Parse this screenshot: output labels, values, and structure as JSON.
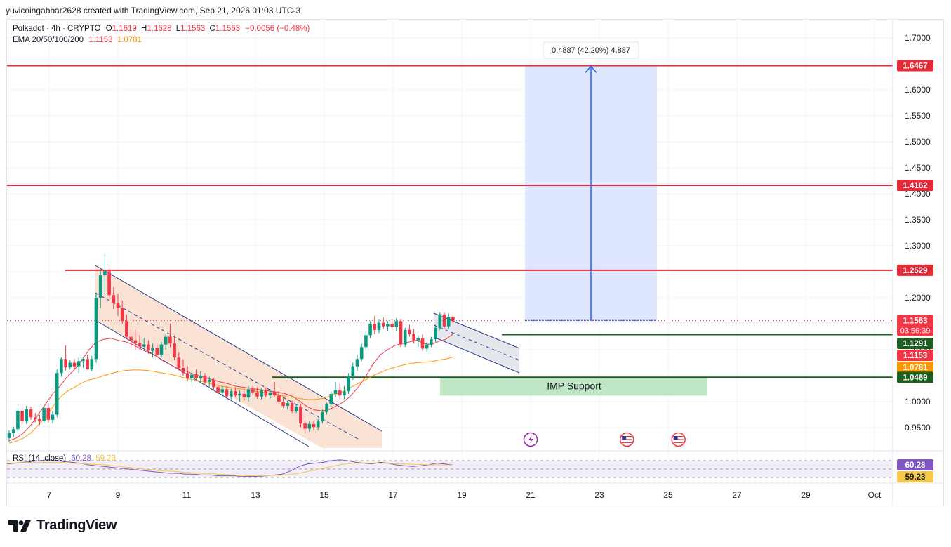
{
  "header": {
    "caption": "yuvicoingabbar2628 created with TradingView.com, Sep 21, 2026 01:03 UTC-3"
  },
  "legend": {
    "symbol": "Polkadot · 4h · CRYPTO",
    "o_label": "O",
    "o": "1.1619",
    "h_label": "H",
    "h": "1.1628",
    "l_label": "L",
    "l": "1.1563",
    "c_label": "C",
    "c": "1.1563",
    "change": "−0.0056 (−0.48%)",
    "ema_label": "EMA 20/50/100/200",
    "ema1": "1.1153",
    "ema2": "1.0781"
  },
  "rsi": {
    "label": "RSI (14, close)",
    "v1": "60.28",
    "v2": "59.23",
    "axis_v1": "60.28",
    "axis_v2": "59.23"
  },
  "chart_data": {
    "type": "candlestick",
    "instrument": "Polkadot · 4h · CRYPTO",
    "ylim": [
      0.92,
      1.72
    ],
    "y_ticks": [
      "0.9500",
      "1.0000",
      "1.0500",
      "1.1000",
      "1.1500",
      "1.2000",
      "1.2500",
      "1.3000",
      "1.3500",
      "1.4000",
      "1.4500",
      "1.5000",
      "1.5500",
      "1.6000",
      "1.6500",
      "1.7000"
    ],
    "x_ticks": [
      "7",
      "9",
      "11",
      "13",
      "15",
      "17",
      "19",
      "21",
      "23",
      "25",
      "27",
      "29",
      "Oct"
    ],
    "price_labels": {
      "last": "1.1563",
      "countdown": "03:56:39",
      "r1": "1.6467",
      "r2": "1.4162",
      "r3": "1.2529",
      "s1": "1.1291",
      "ema20": "1.1153",
      "ema50": "1.0781",
      "s2": "1.0469"
    },
    "horizontal_levels": [
      1.6467,
      1.4162,
      1.2529,
      1.1291,
      1.0469
    ],
    "measure_label": "0.4887 (42.20%) 4,887",
    "support_zone_label": "IMP Support",
    "colors": {
      "up": "#089981",
      "down": "#f23645",
      "ema20": "#f23645",
      "ema50": "#ff9800",
      "resistance": "#e52937",
      "support": "#1b5e20",
      "target_box": "#dbe4ff",
      "measure_arrow": "#2962ff"
    },
    "candles": [
      {
        "o": 0.93,
        "h": 0.945,
        "l": 0.922,
        "c": 0.94
      },
      {
        "o": 0.94,
        "h": 0.952,
        "l": 0.932,
        "c": 0.947
      },
      {
        "o": 0.947,
        "h": 0.988,
        "l": 0.94,
        "c": 0.982
      },
      {
        "o": 0.982,
        "h": 0.99,
        "l": 0.955,
        "c": 0.962
      },
      {
        "o": 0.962,
        "h": 0.992,
        "l": 0.957,
        "c": 0.985
      },
      {
        "o": 0.985,
        "h": 0.99,
        "l": 0.965,
        "c": 0.97
      },
      {
        "o": 0.97,
        "h": 0.978,
        "l": 0.96,
        "c": 0.967
      },
      {
        "o": 0.967,
        "h": 0.975,
        "l": 0.955,
        "c": 0.962
      },
      {
        "o": 0.962,
        "h": 0.992,
        "l": 0.958,
        "c": 0.988
      },
      {
        "o": 0.988,
        "h": 0.995,
        "l": 0.96,
        "c": 0.965
      },
      {
        "o": 0.965,
        "h": 0.982,
        "l": 0.958,
        "c": 0.975
      },
      {
        "o": 0.975,
        "h": 1.062,
        "l": 0.97,
        "c": 1.055
      },
      {
        "o": 1.055,
        "h": 1.085,
        "l": 1.048,
        "c": 1.082
      },
      {
        "o": 1.082,
        "h": 1.108,
        "l": 1.06,
        "c": 1.066
      },
      {
        "o": 1.066,
        "h": 1.08,
        "l": 1.062,
        "c": 1.075
      },
      {
        "o": 1.075,
        "h": 1.082,
        "l": 1.062,
        "c": 1.068
      },
      {
        "o": 1.068,
        "h": 1.085,
        "l": 1.055,
        "c": 1.078
      },
      {
        "o": 1.078,
        "h": 1.086,
        "l": 1.065,
        "c": 1.082
      },
      {
        "o": 1.082,
        "h": 1.09,
        "l": 1.068,
        "c": 1.062
      },
      {
        "o": 1.062,
        "h": 1.088,
        "l": 1.058,
        "c": 1.082
      },
      {
        "o": 1.082,
        "h": 1.208,
        "l": 1.075,
        "c": 1.2
      },
      {
        "o": 1.2,
        "h": 1.255,
        "l": 1.18,
        "c": 1.243
      },
      {
        "o": 1.243,
        "h": 1.283,
        "l": 1.205,
        "c": 1.251
      },
      {
        "o": 1.251,
        "h": 1.262,
        "l": 1.195,
        "c": 1.205
      },
      {
        "o": 1.205,
        "h": 1.22,
        "l": 1.178,
        "c": 1.19
      },
      {
        "o": 1.19,
        "h": 1.208,
        "l": 1.165,
        "c": 1.18
      },
      {
        "o": 1.18,
        "h": 1.195,
        "l": 1.15,
        "c": 1.155
      },
      {
        "o": 1.155,
        "h": 1.168,
        "l": 1.12,
        "c": 1.125
      },
      {
        "o": 1.125,
        "h": 1.14,
        "l": 1.105,
        "c": 1.118
      },
      {
        "o": 1.118,
        "h": 1.138,
        "l": 1.1,
        "c": 1.112
      },
      {
        "o": 1.112,
        "h": 1.128,
        "l": 1.1,
        "c": 1.106
      },
      {
        "o": 1.106,
        "h": 1.122,
        "l": 1.098,
        "c": 1.11
      },
      {
        "o": 1.11,
        "h": 1.118,
        "l": 1.092,
        "c": 1.098
      },
      {
        "o": 1.098,
        "h": 1.112,
        "l": 1.085,
        "c": 1.103
      },
      {
        "o": 1.103,
        "h": 1.11,
        "l": 1.085,
        "c": 1.09
      },
      {
        "o": 1.09,
        "h": 1.115,
        "l": 1.085,
        "c": 1.11
      },
      {
        "o": 1.11,
        "h": 1.13,
        "l": 1.1,
        "c": 1.125
      },
      {
        "o": 1.125,
        "h": 1.15,
        "l": 1.105,
        "c": 1.112
      },
      {
        "o": 1.112,
        "h": 1.128,
        "l": 1.08,
        "c": 1.085
      },
      {
        "o": 1.085,
        "h": 1.095,
        "l": 1.06,
        "c": 1.065
      },
      {
        "o": 1.065,
        "h": 1.082,
        "l": 1.05,
        "c": 1.055
      },
      {
        "o": 1.055,
        "h": 1.068,
        "l": 1.04,
        "c": 1.045
      },
      {
        "o": 1.045,
        "h": 1.06,
        "l": 1.035,
        "c": 1.052
      },
      {
        "o": 1.052,
        "h": 1.062,
        "l": 1.042,
        "c": 1.045
      },
      {
        "o": 1.045,
        "h": 1.058,
        "l": 1.035,
        "c": 1.05
      },
      {
        "o": 1.05,
        "h": 1.055,
        "l": 1.032,
        "c": 1.038
      },
      {
        "o": 1.038,
        "h": 1.048,
        "l": 1.028,
        "c": 1.042
      },
      {
        "o": 1.042,
        "h": 1.045,
        "l": 1.022,
        "c": 1.028
      },
      {
        "o": 1.028,
        "h": 1.036,
        "l": 1.015,
        "c": 1.018
      },
      {
        "o": 1.018,
        "h": 1.03,
        "l": 1.01,
        "c": 1.024
      },
      {
        "o": 1.024,
        "h": 1.03,
        "l": 1.005,
        "c": 1.01
      },
      {
        "o": 1.01,
        "h": 1.025,
        "l": 1.003,
        "c": 1.02
      },
      {
        "o": 1.02,
        "h": 1.028,
        "l": 1.008,
        "c": 1.012
      },
      {
        "o": 1.012,
        "h": 1.022,
        "l": 1.0,
        "c": 1.015
      },
      {
        "o": 1.015,
        "h": 1.026,
        "l": 1.002,
        "c": 1.008
      },
      {
        "o": 1.008,
        "h": 1.03,
        "l": 1.0,
        "c": 1.024
      },
      {
        "o": 1.024,
        "h": 1.03,
        "l": 1.012,
        "c": 1.018
      },
      {
        "o": 1.018,
        "h": 1.028,
        "l": 1.006,
        "c": 1.01
      },
      {
        "o": 1.01,
        "h": 1.026,
        "l": 1.004,
        "c": 1.022
      },
      {
        "o": 1.022,
        "h": 1.028,
        "l": 1.008,
        "c": 1.012
      },
      {
        "o": 1.012,
        "h": 1.024,
        "l": 1.006,
        "c": 1.018
      },
      {
        "o": 1.018,
        "h": 1.038,
        "l": 1.01,
        "c": 1.012
      },
      {
        "o": 1.012,
        "h": 1.02,
        "l": 0.995,
        "c": 1.0
      },
      {
        "o": 1.0,
        "h": 1.008,
        "l": 0.988,
        "c": 0.992
      },
      {
        "o": 0.992,
        "h": 1.002,
        "l": 0.985,
        "c": 0.997
      },
      {
        "o": 0.997,
        "h": 1.002,
        "l": 0.978,
        "c": 0.982
      },
      {
        "o": 0.982,
        "h": 0.994,
        "l": 0.978,
        "c": 0.99
      },
      {
        "o": 0.99,
        "h": 0.995,
        "l": 0.95,
        "c": 0.958
      },
      {
        "o": 0.958,
        "h": 0.965,
        "l": 0.94,
        "c": 0.948
      },
      {
        "o": 0.948,
        "h": 0.962,
        "l": 0.942,
        "c": 0.957
      },
      {
        "o": 0.957,
        "h": 0.962,
        "l": 0.945,
        "c": 0.951
      },
      {
        "o": 0.951,
        "h": 0.968,
        "l": 0.945,
        "c": 0.962
      },
      {
        "o": 0.962,
        "h": 0.985,
        "l": 0.958,
        "c": 0.98
      },
      {
        "o": 0.98,
        "h": 0.998,
        "l": 0.975,
        "c": 0.995
      },
      {
        "o": 0.995,
        "h": 1.02,
        "l": 0.99,
        "c": 1.015
      },
      {
        "o": 1.015,
        "h": 1.038,
        "l": 1.008,
        "c": 1.022
      },
      {
        "o": 1.022,
        "h": 1.035,
        "l": 1.005,
        "c": 1.012
      },
      {
        "o": 1.012,
        "h": 1.03,
        "l": 1.005,
        "c": 1.02
      },
      {
        "o": 1.02,
        "h": 1.055,
        "l": 1.015,
        "c": 1.05
      },
      {
        "o": 1.05,
        "h": 1.075,
        "l": 1.042,
        "c": 1.068
      },
      {
        "o": 1.068,
        "h": 1.09,
        "l": 1.06,
        "c": 1.082
      },
      {
        "o": 1.082,
        "h": 1.112,
        "l": 1.078,
        "c": 1.105
      },
      {
        "o": 1.105,
        "h": 1.135,
        "l": 1.098,
        "c": 1.128
      },
      {
        "o": 1.128,
        "h": 1.155,
        "l": 1.122,
        "c": 1.15
      },
      {
        "o": 1.15,
        "h": 1.165,
        "l": 1.13,
        "c": 1.138
      },
      {
        "o": 1.138,
        "h": 1.158,
        "l": 1.132,
        "c": 1.152
      },
      {
        "o": 1.152,
        "h": 1.162,
        "l": 1.14,
        "c": 1.145
      },
      {
        "o": 1.145,
        "h": 1.155,
        "l": 1.135,
        "c": 1.15
      },
      {
        "o": 1.15,
        "h": 1.158,
        "l": 1.138,
        "c": 1.144
      },
      {
        "o": 1.144,
        "h": 1.16,
        "l": 1.135,
        "c": 1.155
      },
      {
        "o": 1.155,
        "h": 1.158,
        "l": 1.105,
        "c": 1.11
      },
      {
        "o": 1.11,
        "h": 1.142,
        "l": 1.105,
        "c": 1.138
      },
      {
        "o": 1.138,
        "h": 1.148,
        "l": 1.125,
        "c": 1.13
      },
      {
        "o": 1.13,
        "h": 1.14,
        "l": 1.112,
        "c": 1.118
      },
      {
        "o": 1.118,
        "h": 1.128,
        "l": 1.105,
        "c": 1.122
      },
      {
        "o": 1.122,
        "h": 1.13,
        "l": 1.098,
        "c": 1.102
      },
      {
        "o": 1.102,
        "h": 1.115,
        "l": 1.095,
        "c": 1.11
      },
      {
        "o": 1.11,
        "h": 1.125,
        "l": 1.105,
        "c": 1.12
      },
      {
        "o": 1.12,
        "h": 1.148,
        "l": 1.115,
        "c": 1.142
      },
      {
        "o": 1.142,
        "h": 1.172,
        "l": 1.138,
        "c": 1.168
      },
      {
        "o": 1.168,
        "h": 1.172,
        "l": 1.14,
        "c": 1.145
      },
      {
        "o": 1.145,
        "h": 1.17,
        "l": 1.14,
        "c": 1.163
      },
      {
        "o": 1.163,
        "h": 1.168,
        "l": 1.152,
        "c": 1.156
      }
    ],
    "ema20": [
      0.925,
      0.93,
      0.94,
      0.955,
      0.975,
      0.995,
      1.015,
      1.03,
      1.048,
      1.062,
      1.08,
      1.1,
      1.115,
      1.12,
      1.122,
      1.118,
      1.115,
      1.11,
      1.102,
      1.095,
      1.09,
      1.08,
      1.072,
      1.065,
      1.06,
      1.055,
      1.05,
      1.046,
      1.042,
      1.038,
      1.035,
      1.03,
      1.028,
      1.026,
      1.024,
      1.022,
      1.02,
      1.018,
      1.015,
      1.01,
      1.0,
      0.99,
      0.984,
      0.982,
      0.985,
      0.992,
      1.0,
      1.012,
      1.028,
      1.048,
      1.072,
      1.09,
      1.1,
      1.108,
      1.112,
      1.115,
      1.118,
      1.112,
      1.11,
      1.116,
      1.12,
      1.13
    ],
    "ema50": [
      0.92,
      0.924,
      0.93,
      0.94,
      0.955,
      0.97,
      0.99,
      1.008,
      1.02,
      1.028,
      1.036,
      1.042,
      1.045,
      1.05,
      1.054,
      1.058,
      1.06,
      1.061,
      1.061,
      1.06,
      1.058,
      1.055,
      1.053,
      1.05,
      1.046,
      1.043,
      1.04,
      1.037,
      1.034,
      1.03,
      1.028,
      1.026,
      1.024,
      1.022,
      1.02,
      1.018,
      1.016,
      1.013,
      1.01,
      1.008,
      1.006,
      1.004,
      1.004,
      1.006,
      1.01,
      1.015,
      1.02,
      1.028,
      1.035,
      1.042,
      1.05,
      1.056,
      1.062,
      1.066,
      1.07,
      1.073,
      1.075,
      1.076,
      1.077,
      1.08,
      1.082,
      1.086
    ],
    "rsi_series": [
      62,
      64,
      66,
      68,
      70,
      72,
      70,
      68,
      66,
      64,
      60,
      58,
      56,
      54,
      52,
      50,
      48,
      46,
      44,
      42,
      40,
      40,
      38,
      38,
      36,
      36,
      34,
      34,
      34,
      32,
      33,
      32,
      34,
      36,
      38,
      46,
      56,
      62,
      64,
      66,
      70,
      72,
      70,
      66,
      64,
      62,
      66,
      64,
      60,
      58,
      56,
      58,
      60,
      64,
      62,
      60
    ],
    "rsi_ma_series": [
      64,
      64,
      65,
      66,
      66,
      66,
      66,
      65,
      64,
      63,
      62,
      61,
      60,
      58,
      56,
      54,
      52,
      50,
      48,
      46,
      45,
      44,
      42,
      41,
      40,
      39,
      38,
      37,
      36,
      35,
      35,
      34,
      34,
      35,
      36,
      37,
      40,
      44,
      48,
      52,
      56,
      60,
      63,
      64,
      64,
      64,
      64,
      64,
      63,
      62,
      61,
      61,
      60,
      60,
      60,
      60
    ],
    "events": [
      {
        "type": "dividends",
        "x_day": 21.0
      },
      {
        "type": "us-flag",
        "x_day": 23.8
      },
      {
        "type": "us-flag",
        "x_day": 25.3
      }
    ]
  }
}
